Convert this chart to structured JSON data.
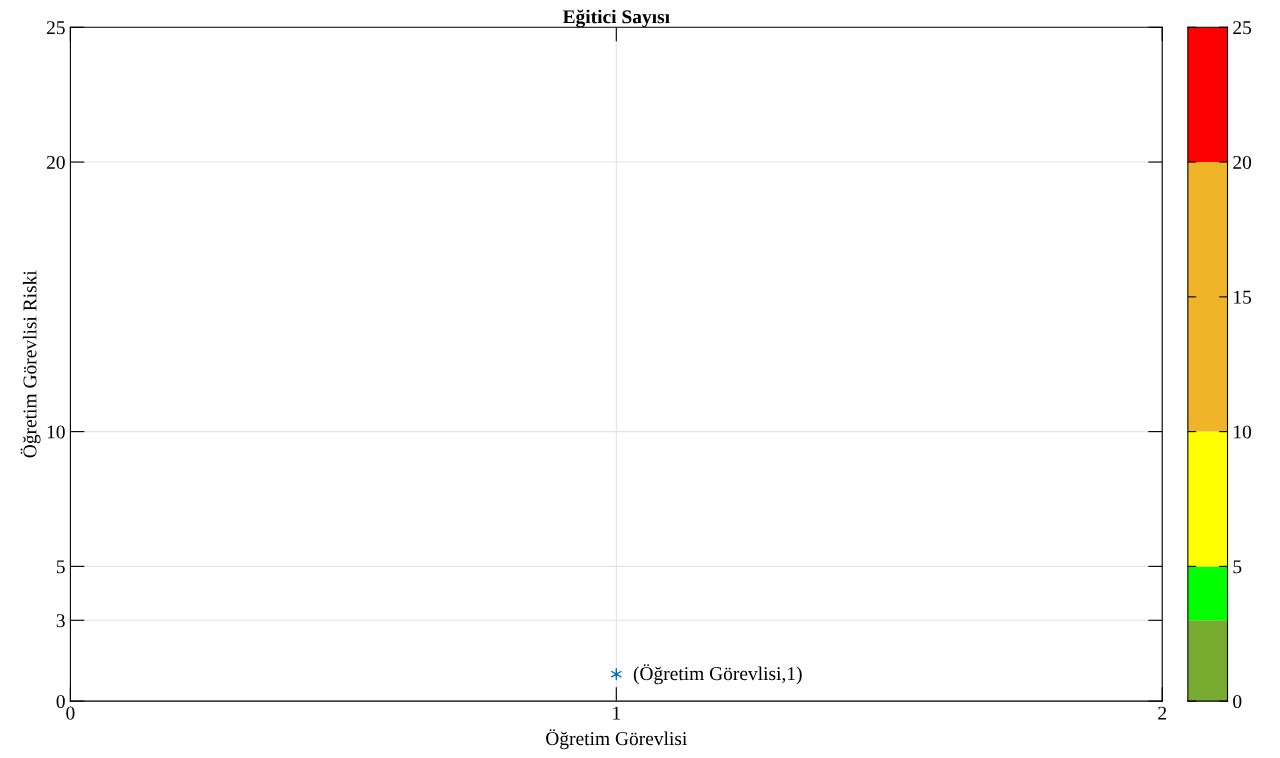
{
  "chart_data": [
    {
      "type": "scatter",
      "title": "Eğitici Sayısı",
      "xlabel": "Öğretim Görevlisi",
      "ylabel": "Öğretim Görevlisi Riski",
      "x": [
        1
      ],
      "series": [
        {
          "color": "#0072bd",
          "values": [
            1
          ]
        }
      ],
      "xlim": [
        0,
        2
      ],
      "xticks": [
        0,
        1,
        2
      ],
      "ylim": [
        0,
        25
      ],
      "yticks": [
        0,
        3,
        5,
        10,
        20,
        25
      ],
      "grid": true,
      "marker": "cross",
      "annotations": [
        {
          "text": "(Öğretim Görevlisi,1)",
          "x": 1,
          "y": 1
        }
      ]
    },
    {
      "type": "bar",
      "stacked": true,
      "categories": [
        null
      ],
      "tick_labels": "y",
      "series": [
        {
          "color": "#77ac30",
          "values": [
            3
          ]
        },
        {
          "color": "#00ff00",
          "values": [
            2
          ]
        },
        {
          "color": "#ffff00",
          "values": [
            5
          ]
        },
        {
          "color": "#f0b429",
          "values": [
            10
          ]
        },
        {
          "color": "#ff0000",
          "values": [
            5
          ]
        }
      ],
      "ylim": [
        0,
        25
      ],
      "yticks": [
        0,
        5,
        10,
        15,
        20,
        25
      ]
    }
  ]
}
